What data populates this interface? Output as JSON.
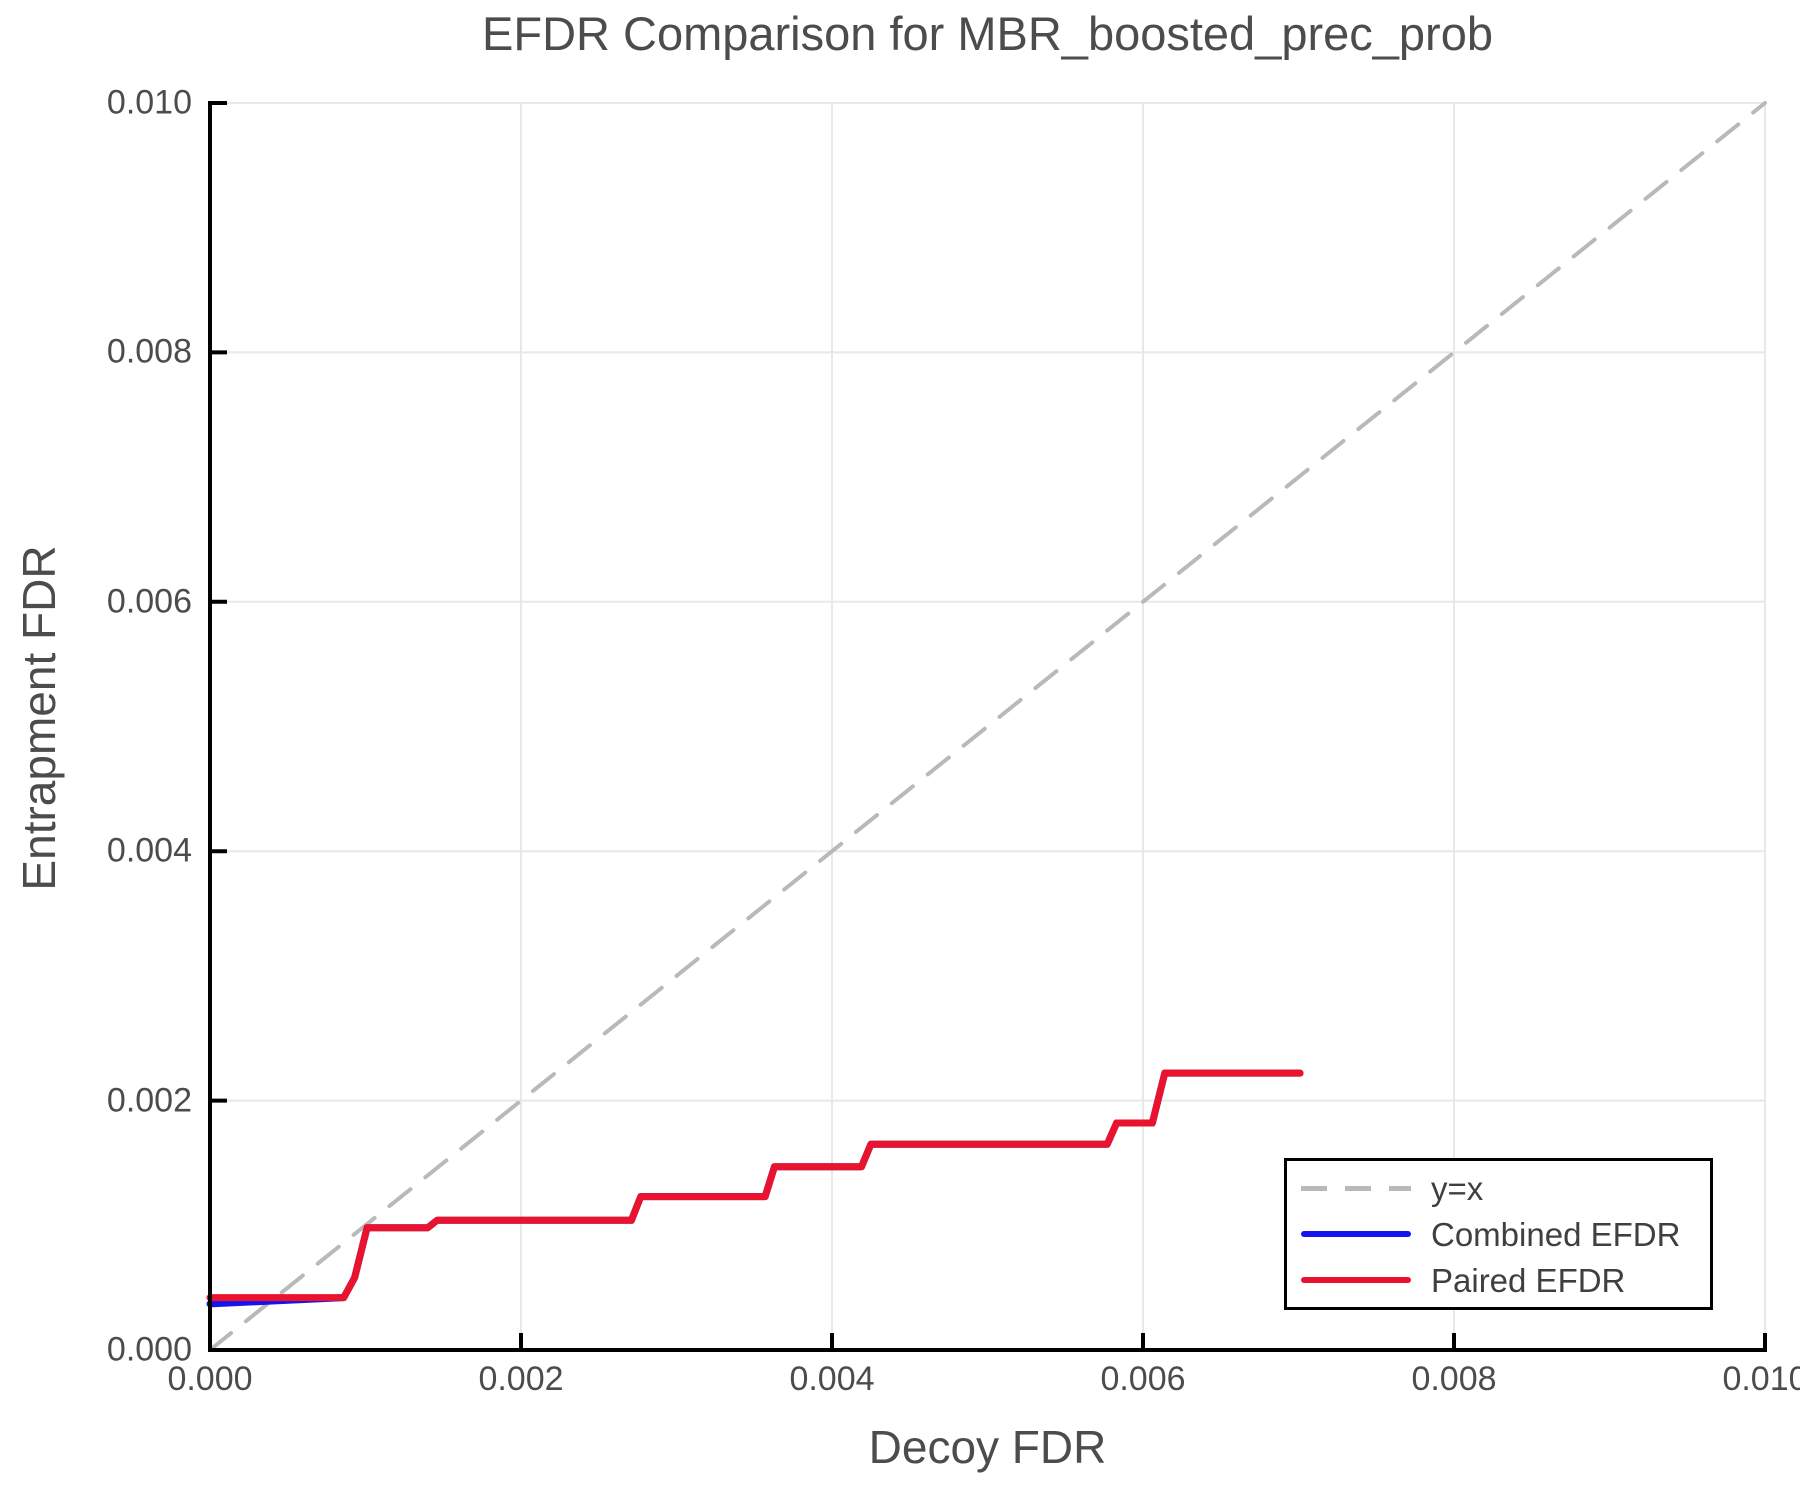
{
  "colors": {
    "background": "#ffffff",
    "spine": "#000000",
    "grid": "#e8e8e8",
    "text": "#4c4c4c",
    "legend_border": "#000000",
    "reference_gray": "#b9b9b9",
    "combined_blue": "#1414f0",
    "paired_red": "#e9132d"
  },
  "chart_data": {
    "type": "line",
    "title": "EFDR Comparison for MBR_boosted_prec_prob",
    "xlabel": "Decoy FDR",
    "ylabel": "Entrapment FDR",
    "xlim": [
      0.0,
      0.01
    ],
    "ylim": [
      0.0,
      0.01
    ],
    "grid": true,
    "legend_position": "lower right",
    "x_ticks": {
      "values": [
        0.0,
        0.002,
        0.004,
        0.006,
        0.008,
        0.01
      ],
      "labels": [
        "0.000",
        "0.002",
        "0.004",
        "0.006",
        "0.008",
        "0.010"
      ]
    },
    "y_ticks": {
      "values": [
        0.0,
        0.002,
        0.004,
        0.006,
        0.008,
        0.01
      ],
      "labels": [
        "0.000",
        "0.002",
        "0.004",
        "0.006",
        "0.008",
        "0.010"
      ]
    },
    "series": [
      {
        "name": "y=x",
        "line_style": "dashed",
        "color": "#b9b9b9",
        "points": [
          [
            0.0,
            0.0
          ],
          [
            0.01,
            0.01
          ]
        ]
      },
      {
        "name": "Combined EFDR",
        "line_style": "solid",
        "color": "#1414f0",
        "points": [
          [
            0.0,
            0.00037
          ],
          [
            0.00086,
            0.00042
          ],
          [
            0.00093,
            0.00058
          ],
          [
            0.00101,
            0.00098
          ],
          [
            0.0014,
            0.00098
          ],
          [
            0.00146,
            0.00104
          ],
          [
            0.00271,
            0.00104
          ],
          [
            0.00277,
            0.00123
          ],
          [
            0.00357,
            0.00123
          ],
          [
            0.00363,
            0.00147
          ],
          [
            0.00419,
            0.00147
          ],
          [
            0.00425,
            0.00165
          ],
          [
            0.00577,
            0.00165
          ],
          [
            0.00583,
            0.00182
          ],
          [
            0.00606,
            0.00182
          ],
          [
            0.00614,
            0.00222
          ],
          [
            0.00701,
            0.00222
          ]
        ]
      },
      {
        "name": "Paired EFDR",
        "line_style": "solid",
        "color": "#e9132d",
        "points": [
          [
            0.0,
            0.00042
          ],
          [
            0.00086,
            0.00042
          ],
          [
            0.00093,
            0.00058
          ],
          [
            0.00101,
            0.00098
          ],
          [
            0.0014,
            0.00098
          ],
          [
            0.00146,
            0.00104
          ],
          [
            0.00271,
            0.00104
          ],
          [
            0.00277,
            0.00123
          ],
          [
            0.00357,
            0.00123
          ],
          [
            0.00363,
            0.00147
          ],
          [
            0.00419,
            0.00147
          ],
          [
            0.00425,
            0.00165
          ],
          [
            0.00577,
            0.00165
          ],
          [
            0.00583,
            0.00182
          ],
          [
            0.00606,
            0.00182
          ],
          [
            0.00614,
            0.00222
          ],
          [
            0.00701,
            0.00222
          ]
        ]
      }
    ]
  }
}
